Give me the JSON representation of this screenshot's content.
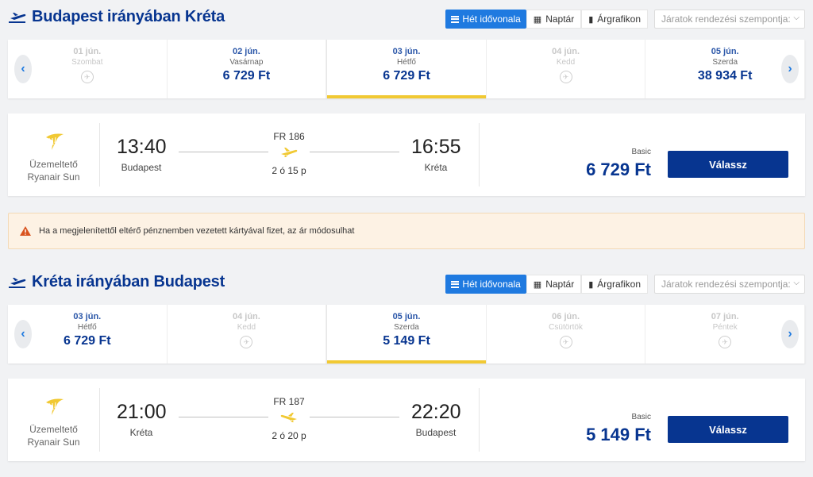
{
  "colors": {
    "brand": "#073590",
    "accent": "#1f7ae0",
    "highlight": "#f1c933",
    "warning_bg": "#fdf2e4"
  },
  "view_options": {
    "timeline": "Hét idővonala",
    "calendar": "Naptár",
    "pricechart": "Árgrafikon",
    "sort_placeholder": "Járatok rendezési szempontja:"
  },
  "outbound": {
    "title": "Budapest irányában Kréta",
    "dates": [
      {
        "date": "01 jún.",
        "weekday": "Szombat",
        "price": "",
        "available": false
      },
      {
        "date": "02 jún.",
        "weekday": "Vasárnap",
        "price": "6 729 Ft",
        "available": true
      },
      {
        "date": "03 jún.",
        "weekday": "Hétfő",
        "price": "6 729 Ft",
        "available": true,
        "selected": true
      },
      {
        "date": "04 jún.",
        "weekday": "Kedd",
        "price": "",
        "available": false
      },
      {
        "date": "05 jún.",
        "weekday": "Szerda",
        "price": "38 934 Ft",
        "available": true
      }
    ],
    "flight": {
      "operator_label": "Üzemeltető",
      "operator_name": "Ryanair Sun",
      "dep_time": "13:40",
      "dep_city": "Budapest",
      "arr_time": "16:55",
      "arr_city": "Kréta",
      "flight_no": "FR 186",
      "duration": "2 ó 15 p",
      "fare_type": "Basic",
      "price": "6 729 Ft",
      "choose": "Válassz"
    }
  },
  "warning": "Ha a megjelenítettől eltérő pénznemben vezetett kártyával fizet, az ár módosulhat",
  "inbound": {
    "title": "Kréta irányában Budapest",
    "dates": [
      {
        "date": "03 jún.",
        "weekday": "Hétfő",
        "price": "6 729 Ft",
        "available": true
      },
      {
        "date": "04 jún.",
        "weekday": "Kedd",
        "price": "",
        "available": false
      },
      {
        "date": "05 jún.",
        "weekday": "Szerda",
        "price": "5 149 Ft",
        "available": true,
        "selected": true
      },
      {
        "date": "06 jún.",
        "weekday": "Csütörtök",
        "price": "",
        "available": false
      },
      {
        "date": "07 jún.",
        "weekday": "Péntek",
        "price": "",
        "available": false
      }
    ],
    "flight": {
      "operator_label": "Üzemeltető",
      "operator_name": "Ryanair Sun",
      "dep_time": "21:00",
      "dep_city": "Kréta",
      "arr_time": "22:20",
      "arr_city": "Budapest",
      "flight_no": "FR 187",
      "duration": "2 ó 20 p",
      "fare_type": "Basic",
      "price": "5 149 Ft",
      "choose": "Válassz"
    }
  }
}
